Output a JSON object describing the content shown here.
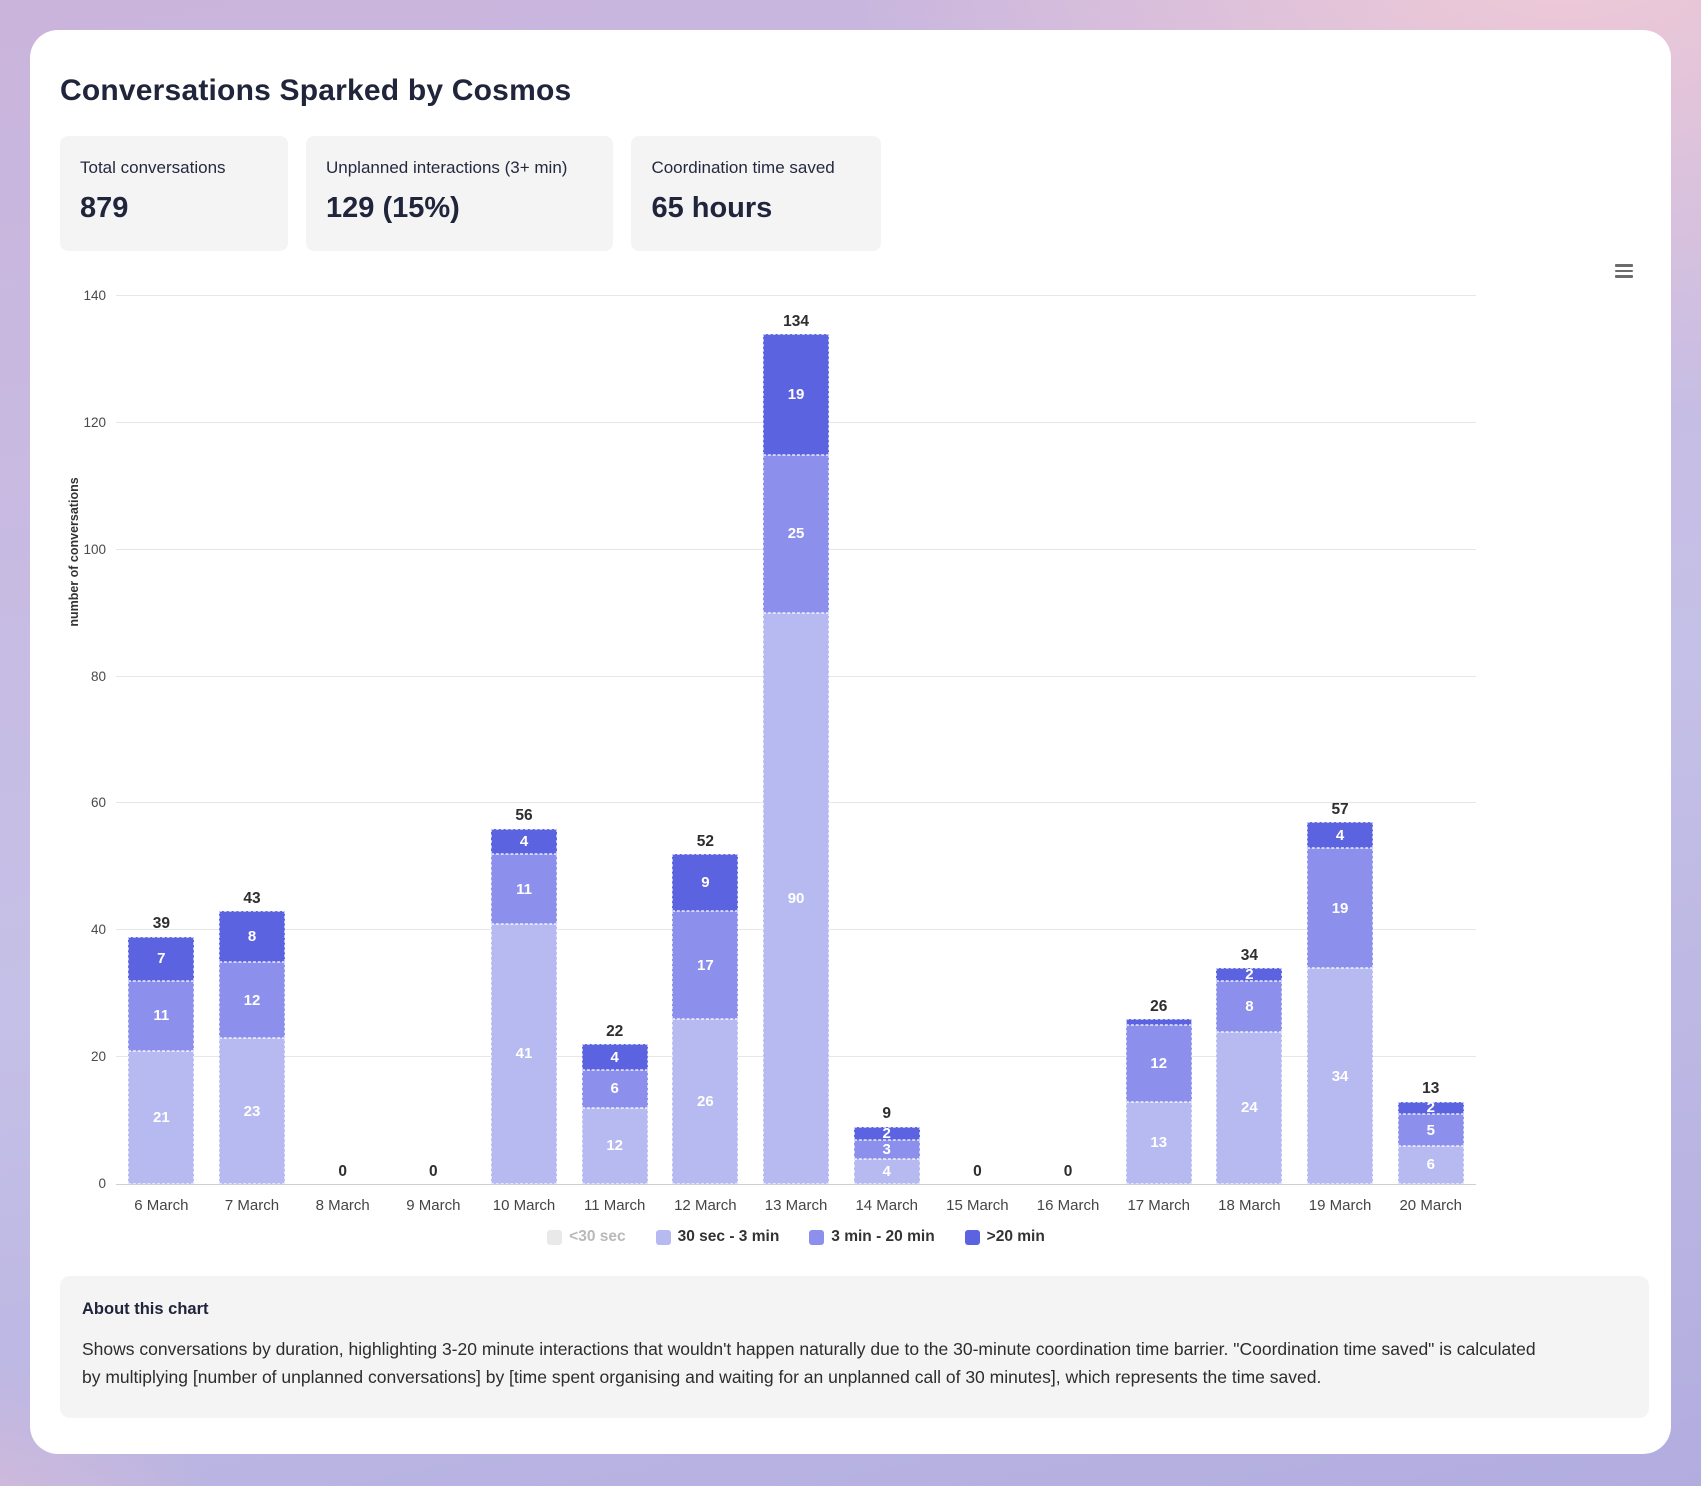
{
  "page": {
    "title": "Conversations Sparked by Cosmos"
  },
  "stats": [
    {
      "label": "Total conversations",
      "value": "879"
    },
    {
      "label": "Unplanned interactions (3+ min)",
      "value": "129 (15%)"
    },
    {
      "label": "Coordination time saved",
      "value": "65 hours"
    }
  ],
  "icons": {
    "chart_menu": "hamburger-menu-icon"
  },
  "chart_data": {
    "type": "bar",
    "stacked": true,
    "ylabel": "number of conversations",
    "ylim": [
      0,
      140
    ],
    "yticks": [
      0,
      20,
      40,
      60,
      80,
      100,
      120,
      140
    ],
    "grid": true,
    "legend_position": "bottom",
    "categories": [
      "6 March",
      "7 March",
      "8 March",
      "9 March",
      "10 March",
      "11 March",
      "12 March",
      "13 March",
      "14 March",
      "15 March",
      "16 March",
      "17 March",
      "18 March",
      "19 March",
      "20 March"
    ],
    "series": [
      {
        "name": "<30 sec",
        "color": "#e9e9ea",
        "disabled": true,
        "values": [
          0,
          0,
          0,
          0,
          0,
          0,
          0,
          0,
          0,
          0,
          0,
          0,
          0,
          0,
          0
        ]
      },
      {
        "name": "30 sec - 3 min",
        "color": "#b7baf1",
        "disabled": false,
        "values": [
          21,
          23,
          0,
          0,
          41,
          12,
          26,
          90,
          4,
          0,
          0,
          13,
          24,
          34,
          6
        ]
      },
      {
        "name": "3 min - 20 min",
        "color": "#8c90ec",
        "disabled": false,
        "values": [
          11,
          12,
          0,
          0,
          11,
          6,
          17,
          25,
          3,
          0,
          0,
          12,
          8,
          19,
          5
        ]
      },
      {
        "name": ">20 min",
        "color": "#5b63e0",
        "disabled": false,
        "values": [
          7,
          8,
          0,
          0,
          4,
          4,
          9,
          19,
          2,
          0,
          0,
          1,
          2,
          4,
          2
        ]
      }
    ],
    "totals": [
      39,
      43,
      0,
      0,
      56,
      22,
      52,
      134,
      9,
      0,
      0,
      26,
      34,
      57,
      13
    ]
  },
  "about": {
    "title": "About this chart",
    "body": "Shows conversations by duration, highlighting 3-20 minute interactions that wouldn't happen naturally due to the 30-minute coordination time barrier. \"Coordination time saved\" is calculated by multiplying [number of unplanned conversations] by [time spent organising and waiting for an unplanned call of 30 minutes], which represents the time saved."
  }
}
